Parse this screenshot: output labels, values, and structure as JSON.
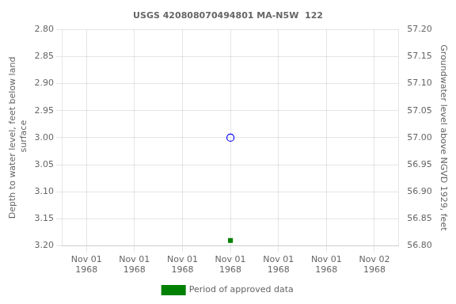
{
  "chart_data": {
    "type": "scatter",
    "title": "USGS 420808070494801 MA-N5W  122",
    "categories": [
      "Nov 01\n1968",
      "Nov 01\n1968",
      "Nov 01\n1968",
      "Nov 01\n1968",
      "Nov 01\n1968",
      "Nov 01\n1968",
      "Nov 02\n1968"
    ],
    "series": [
      {
        "color": "blue",
        "marker": "open_circle",
        "values": [
          null,
          null,
          null,
          3.0,
          null,
          null,
          null
        ]
      },
      {
        "name": "Period of approved data",
        "color": "#008000",
        "marker": "square",
        "values": [
          null,
          null,
          null,
          3.19,
          null,
          null,
          null
        ]
      }
    ],
    "ylabel": "Depth to water level, feet below land\n surface",
    "y2label": "Groundwater level above NGVD 1929, feet",
    "ylim": [
      3.2,
      2.8
    ],
    "yticks": [
      {
        "value": 2.8,
        "label": "2.80"
      },
      {
        "value": 2.85,
        "label": "2.85"
      },
      {
        "value": 2.9,
        "label": "2.90"
      },
      {
        "value": 2.95,
        "label": "2.95"
      },
      {
        "value": 3.0,
        "label": "3.00"
      },
      {
        "value": 3.05,
        "label": "3.05"
      },
      {
        "value": 3.1,
        "label": "3.10"
      },
      {
        "value": 3.15,
        "label": "3.15"
      },
      {
        "value": 3.2,
        "label": "3.20"
      }
    ],
    "y2lim": [
      56.8,
      57.2
    ],
    "y2ticks": [
      {
        "value": 56.8,
        "label": "56.80"
      },
      {
        "value": 56.85,
        "label": "56.85"
      },
      {
        "value": 56.9,
        "label": "56.90"
      },
      {
        "value": 56.95,
        "label": "56.95"
      },
      {
        "value": 57.0,
        "label": "57.00"
      },
      {
        "value": 57.05,
        "label": "57.05"
      },
      {
        "value": 57.1,
        "label": "57.10"
      },
      {
        "value": 57.15,
        "label": "57.15"
      },
      {
        "value": 57.2,
        "label": "57.20"
      }
    ],
    "grid": true,
    "legend": "bottom"
  }
}
